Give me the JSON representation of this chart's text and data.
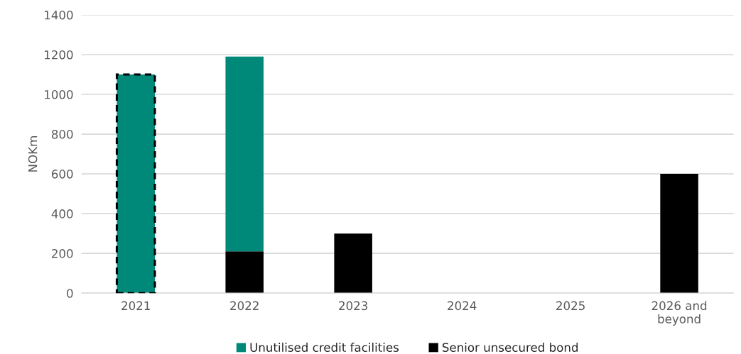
{
  "chart_data": {
    "type": "bar",
    "stacked": true,
    "ylabel": "NOKm",
    "categories": [
      "2021",
      "2022",
      "2023",
      "2024",
      "2025",
      "2026 and beyond"
    ],
    "series": [
      {
        "name": "Senior unsecured bond",
        "color": "#000000",
        "values": [
          0,
          210,
          300,
          0,
          0,
          600
        ]
      },
      {
        "name": "Unutilised credit facilities",
        "color": "#008878",
        "values": [
          1100,
          980,
          0,
          0,
          0,
          0
        ]
      }
    ],
    "ylim": [
      0,
      1400
    ],
    "yticks": [
      0,
      200,
      400,
      600,
      800,
      1000,
      1200,
      1400
    ],
    "grid": "y",
    "legend": "bottom"
  }
}
